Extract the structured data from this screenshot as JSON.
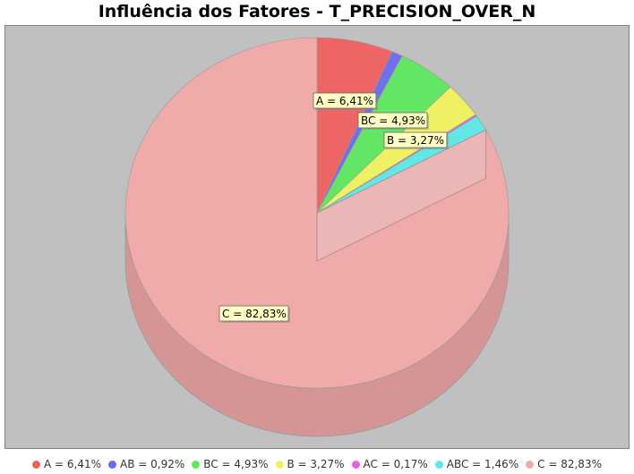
{
  "chart_data": {
    "type": "pie",
    "title": "Influência dos Fatores - T_PRECISION_OVER_N",
    "slices": [
      {
        "name": "A",
        "value": 6.41,
        "label": "A = 6,41%",
        "color": "#f06060"
      },
      {
        "name": "AB",
        "value": 0.92,
        "label": "AB = 0,92%",
        "color": "#6b6bf0"
      },
      {
        "name": "BC",
        "value": 4.93,
        "label": "BC = 4,93%",
        "color": "#5ee85e"
      },
      {
        "name": "B",
        "value": 3.27,
        "label": "B = 3,27%",
        "color": "#f2f25e"
      },
      {
        "name": "AC",
        "value": 0.17,
        "label": "AC = 0,17%",
        "color": "#e85ee8"
      },
      {
        "name": "ABC",
        "value": 1.46,
        "label": "ABC = 1,46%",
        "color": "#5ee8e8"
      },
      {
        "name": "C",
        "value": 82.83,
        "label": "C = 82,83%",
        "color": "#f2a9a9"
      }
    ],
    "labeled_slices": [
      "A",
      "BC",
      "B",
      "C"
    ],
    "legend_position": "bottom",
    "background_color": "#c0c0c0"
  }
}
